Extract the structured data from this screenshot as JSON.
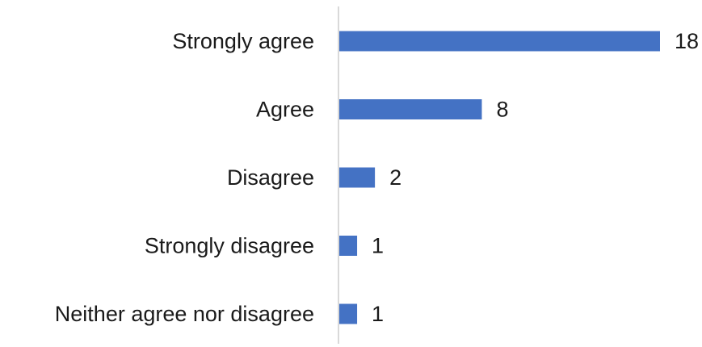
{
  "chart_data": {
    "type": "bar",
    "orientation": "horizontal",
    "categories": [
      "Strongly agree",
      "Agree",
      "Disagree",
      "Strongly disagree",
      "Neither agree nor disagree"
    ],
    "values": [
      18,
      8,
      2,
      1,
      1
    ],
    "title": "",
    "xlabel": "",
    "ylabel": "",
    "xlim": [
      0,
      18
    ],
    "grid": false,
    "legend": "none",
    "data_labels": true,
    "colors": {
      "bar": "#4472C4",
      "axis": "#D9D9D9",
      "text": "#1A1A1A"
    }
  }
}
